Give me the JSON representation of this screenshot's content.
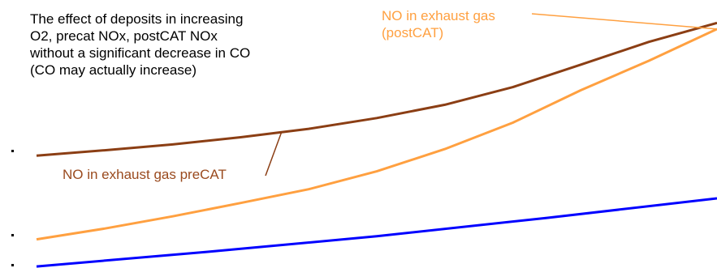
{
  "colors": {
    "preCAT": "#8b3e14",
    "postCAT": "#ffa040",
    "co": "#0000ff",
    "text": "#000000"
  },
  "annotation": {
    "lines": [
      "The effect of deposits in increasing",
      "O2, precat NOx, postCAT NOx",
      "without a significant decrease in CO",
      "(CO may actually increase)"
    ]
  },
  "chart_data": {
    "type": "line",
    "title": "",
    "xlabel": "",
    "ylabel": "",
    "xlim": [
      0,
      100
    ],
    "ylim": [
      0,
      100
    ],
    "grid": false,
    "legend": "none",
    "series": [
      {
        "name": "NO in exhaust gas preCAT",
        "label_lines": [
          "NO in exhaust gas preCAT"
        ],
        "color": "#8b3e14",
        "x": [
          0,
          10,
          20,
          30,
          40,
          50,
          60,
          70,
          80,
          90,
          100
        ],
        "y": [
          43.9,
          46.0,
          48.3,
          51.1,
          54.4,
          58.6,
          63.8,
          70.7,
          79.5,
          88.4,
          95.8
        ]
      },
      {
        "name": "NO in exhaust gas (postCAT)",
        "label_lines": [
          "NO in exhaust gas",
          "(postCAT)"
        ],
        "color": "#ffa040",
        "x": [
          0,
          10,
          20,
          30,
          40,
          50,
          60,
          70,
          80,
          90,
          100
        ],
        "y": [
          11.2,
          15.4,
          20.2,
          25.4,
          30.8,
          37.8,
          46.5,
          56.8,
          69.5,
          81.0,
          93.4
        ]
      },
      {
        "color": "#0000ff",
        "x": [
          0,
          25,
          50,
          75,
          100
        ],
        "y": [
          0.6,
          6.3,
          12.4,
          19.6,
          27.2
        ]
      }
    ],
    "annotations": [
      {
        "series": 0,
        "from": "label",
        "to_x": 36
      },
      {
        "series": 1,
        "from": "label",
        "to_x": 100
      }
    ]
  }
}
